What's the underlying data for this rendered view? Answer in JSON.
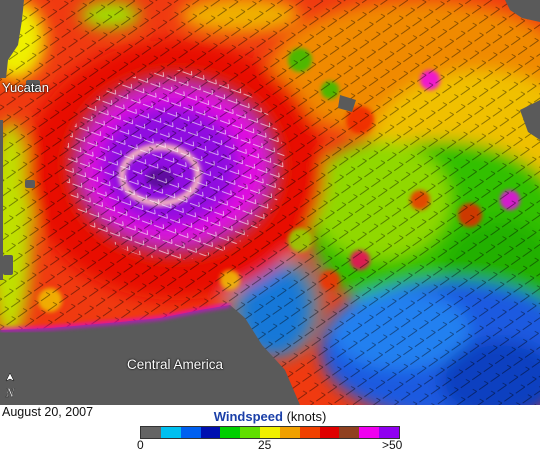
{
  "labels": {
    "yucatan": "Yucatan",
    "central_america": "Central America",
    "north_symbol": "N"
  },
  "date": "August 20, 2007",
  "legend": {
    "title": "Windspeed",
    "units": "(knots)",
    "ticks": [
      "0",
      "25",
      ">50"
    ],
    "colors": [
      "#646464",
      "#00c0f0",
      "#0060f0",
      "#0010b0",
      "#00d000",
      "#60e000",
      "#f0f000",
      "#f0a000",
      "#f04000",
      "#e00000",
      "#904020",
      "#f000f0",
      "#9000f0"
    ]
  },
  "colors": {
    "land": "#5a5a5a",
    "calm_water": "#1a4ab5"
  }
}
